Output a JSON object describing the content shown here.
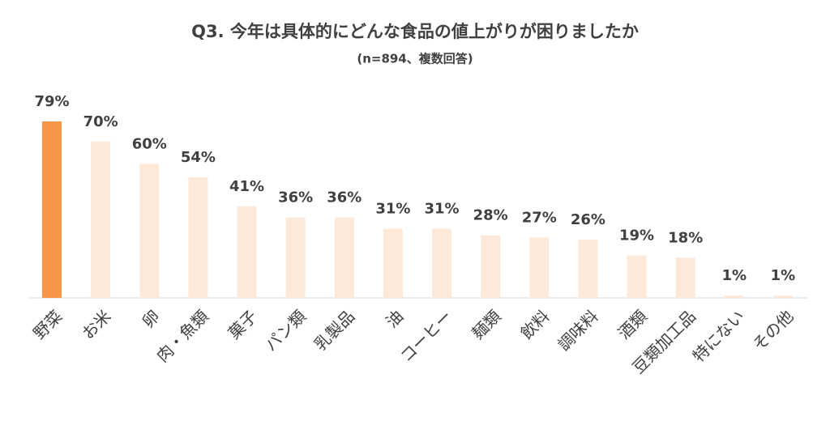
{
  "chart_data": {
    "type": "bar",
    "title": "Q3. 今年は具体的にどんな食品の値上がりが困りましたか",
    "subtitle": "(n=894、複数回答)",
    "categories": [
      "野菜",
      "お米",
      "卵",
      "肉・魚類",
      "菓子",
      "パン類",
      "乳製品",
      "油",
      "コーヒー",
      "麺類",
      "飲料",
      "調味料",
      "酒類",
      "豆類加工品",
      "特にない",
      "その他"
    ],
    "values": [
      79,
      70,
      60,
      54,
      41,
      36,
      36,
      31,
      31,
      28,
      27,
      26,
      19,
      18,
      1,
      1
    ],
    "value_labels": [
      "79%",
      "70%",
      "60%",
      "54%",
      "41%",
      "36%",
      "36%",
      "31%",
      "31%",
      "28%",
      "27%",
      "26%",
      "19%",
      "18%",
      "1%",
      "1%"
    ],
    "colors": [
      "#f79646",
      "#fde9d9",
      "#fde9d9",
      "#fde9d9",
      "#fde9d9",
      "#fde9d9",
      "#fde9d9",
      "#fde9d9",
      "#fde9d9",
      "#fde9d9",
      "#fde9d9",
      "#fde9d9",
      "#fde9d9",
      "#fde9d9",
      "#fde9d9",
      "#fde9d9"
    ],
    "ylim": [
      0,
      100
    ]
  }
}
